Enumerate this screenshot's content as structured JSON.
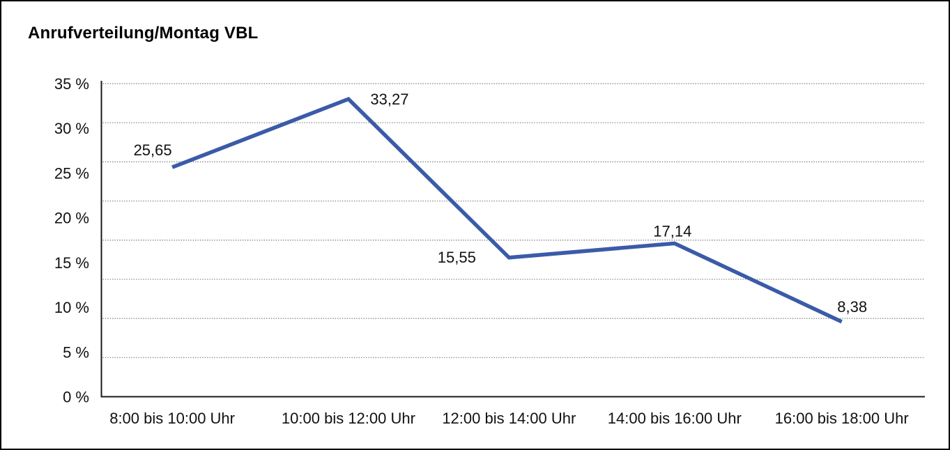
{
  "title": "Anrufverteilung/Montag VBL",
  "colors": {
    "line": "#3A5BA8",
    "axis": "#1a1a1a",
    "grid": "#6e6e6e",
    "text": "#111111",
    "background": "#ffffff",
    "border": "#000000"
  },
  "chart_data": {
    "type": "line",
    "title": "Anrufverteilung/Montag VBL",
    "categories": [
      "8:00 bis 10:00 Uhr",
      "10:00 bis 12:00 Uhr",
      "12:00 bis 14:00 Uhr",
      "14:00 bis 16:00 Uhr",
      "16:00 bis 18:00 Uhr"
    ],
    "values": [
      25.65,
      33.27,
      15.55,
      17.14,
      8.38
    ],
    "data_labels": [
      "25,65",
      "33,27",
      "15,55",
      "17,14",
      "8,38"
    ],
    "y_ticks": [
      {
        "value": 35,
        "label": "35 %"
      },
      {
        "value": 30,
        "label": "30 %"
      },
      {
        "value": 25,
        "label": "25 %"
      },
      {
        "value": 20,
        "label": "20 %"
      },
      {
        "value": 15,
        "label": "15 %"
      },
      {
        "value": 10,
        "label": "10 %"
      },
      {
        "value": 5,
        "label": "5 %"
      },
      {
        "value": 0,
        "label": "0 %"
      }
    ],
    "xlabel": "",
    "ylabel": "",
    "ylim": [
      0,
      35
    ],
    "grid": "horizontal-dotted",
    "gridline_intervals": 8,
    "legend": "none",
    "line_color": "#3A5BA8"
  }
}
